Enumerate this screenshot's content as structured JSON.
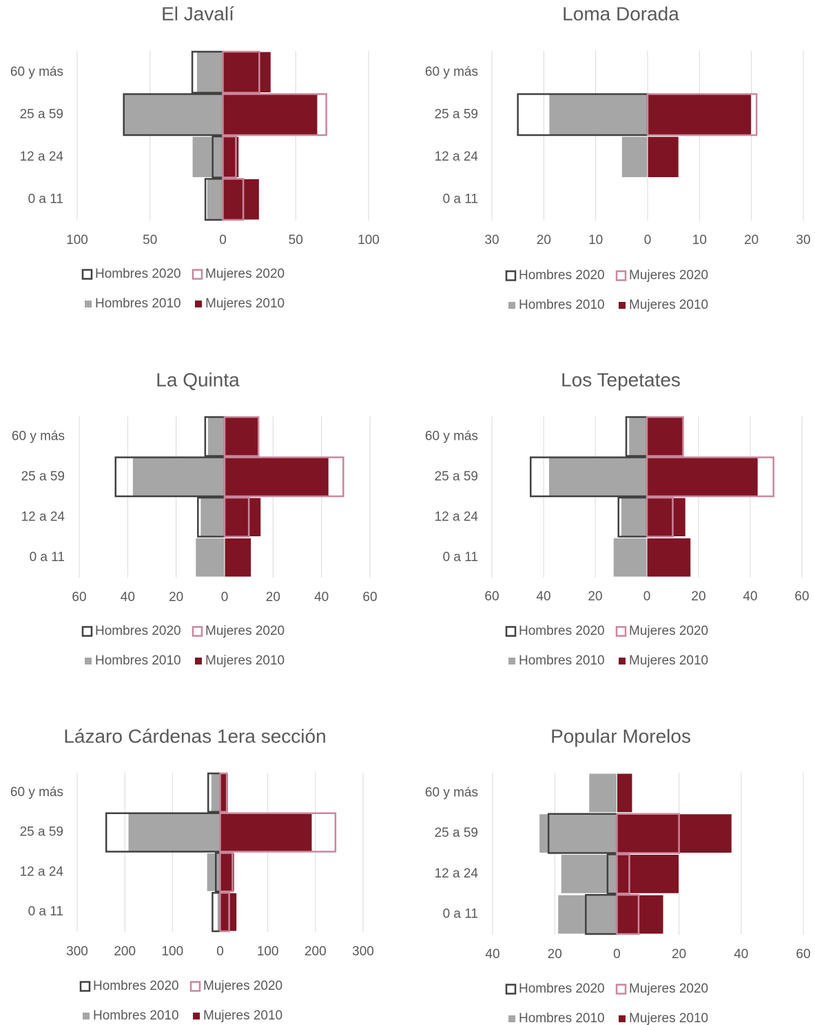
{
  "chart_data": [
    {
      "type": "bar",
      "orientation": "horizontal",
      "title": "El Javalí",
      "categories": [
        "60 y más",
        "25 a 59",
        "12 a 24",
        "0 a 11"
      ],
      "xlim": [
        -100,
        100
      ],
      "xticks": [
        {
          "value": -100,
          "label": "100"
        },
        {
          "value": -50,
          "label": "50"
        },
        0,
        50,
        100
      ],
      "grid": true,
      "series": [
        {
          "name": "Hombres 2020",
          "color": "#404040",
          "style": "outline",
          "values": [
            -21,
            -68,
            -7,
            -12
          ]
        },
        {
          "name": "Mujeres 2020",
          "color": "#c9879b",
          "style": "outline",
          "values": [
            25,
            71,
            9,
            14
          ]
        },
        {
          "name": "Hombres 2010",
          "color": "#a6a6a6",
          "style": "fill",
          "values": [
            -18,
            -68,
            -21,
            -11
          ]
        },
        {
          "name": "Mujeres 2010",
          "color": "#7f1424",
          "style": "fill",
          "values": [
            33,
            65,
            11,
            25
          ]
        }
      ]
    },
    {
      "type": "bar",
      "orientation": "horizontal",
      "title": "Loma Dorada",
      "categories": [
        "60 y más",
        "25 a 59",
        "12 a 24",
        "0 a 11"
      ],
      "xlim": [
        -30,
        30
      ],
      "xticks": [
        {
          "value": -30,
          "label": "30"
        },
        {
          "value": -20,
          "label": "20"
        },
        {
          "value": -10,
          "label": "10"
        },
        0,
        10,
        20,
        30
      ],
      "grid": true,
      "series": [
        {
          "name": "Hombres 2020",
          "color": "#404040",
          "style": "outline",
          "values": [
            0,
            -25,
            0,
            0
          ]
        },
        {
          "name": "Mujeres 2020",
          "color": "#c9879b",
          "style": "outline",
          "values": [
            0,
            21,
            0,
            0
          ]
        },
        {
          "name": "Hombres 2010",
          "color": "#a6a6a6",
          "style": "fill",
          "values": [
            0,
            -19,
            -5,
            0
          ]
        },
        {
          "name": "Mujeres 2010",
          "color": "#7f1424",
          "style": "fill",
          "values": [
            0,
            20,
            6,
            0
          ]
        }
      ]
    },
    {
      "type": "bar",
      "orientation": "horizontal",
      "title": "La Quinta",
      "categories": [
        "60 y más",
        "25 a 59",
        "12 a 24",
        "0 a 11"
      ],
      "xlim": [
        -60,
        60
      ],
      "xticks": [
        {
          "value": -60,
          "label": "60"
        },
        {
          "value": -40,
          "label": "40"
        },
        {
          "value": -20,
          "label": "20"
        },
        0,
        20,
        40,
        60
      ],
      "grid": true,
      "series": [
        {
          "name": "Hombres 2020",
          "color": "#404040",
          "style": "outline",
          "values": [
            -8,
            -45,
            -11,
            0
          ]
        },
        {
          "name": "Mujeres 2020",
          "color": "#c9879b",
          "style": "outline",
          "values": [
            14,
            49,
            10,
            0
          ]
        },
        {
          "name": "Hombres 2010",
          "color": "#a6a6a6",
          "style": "fill",
          "values": [
            -7,
            -38,
            -10,
            -12
          ]
        },
        {
          "name": "Mujeres 2010",
          "color": "#7f1424",
          "style": "fill",
          "values": [
            14,
            43,
            15,
            11
          ]
        }
      ]
    },
    {
      "type": "bar",
      "orientation": "horizontal",
      "title": "Los Tepetates",
      "categories": [
        "60 y más",
        "25 a 59",
        "12 a 24",
        "0 a 11"
      ],
      "xlim": [
        -60,
        60
      ],
      "xticks": [
        {
          "value": -60,
          "label": "60"
        },
        {
          "value": -40,
          "label": "40"
        },
        {
          "value": -20,
          "label": "20"
        },
        0,
        20,
        40,
        60
      ],
      "grid": true,
      "series": [
        {
          "name": "Hombres 2020",
          "color": "#404040",
          "style": "outline",
          "values": [
            -8,
            -45,
            -11,
            0
          ]
        },
        {
          "name": "Mujeres 2020",
          "color": "#c9879b",
          "style": "outline",
          "values": [
            14,
            49,
            10,
            0
          ]
        },
        {
          "name": "Hombres 2010",
          "color": "#a6a6a6",
          "style": "fill",
          "values": [
            -7,
            -38,
            -10,
            -13
          ]
        },
        {
          "name": "Mujeres 2010",
          "color": "#7f1424",
          "style": "fill",
          "values": [
            14,
            43,
            15,
            17
          ]
        }
      ]
    },
    {
      "type": "bar",
      "orientation": "horizontal",
      "title": "Lázaro Cárdenas 1era sección",
      "categories": [
        "60 y más",
        "25 a 59",
        "12 a 24",
        "0 a 11"
      ],
      "xlim": [
        -300,
        300
      ],
      "xticks": [
        {
          "value": -300,
          "label": "300"
        },
        {
          "value": -200,
          "label": "200"
        },
        {
          "value": -100,
          "label": "100"
        },
        0,
        100,
        200,
        300
      ],
      "grid": true,
      "series": [
        {
          "name": "Hombres 2020",
          "color": "#404040",
          "style": "outline",
          "values": [
            -25,
            -239,
            -9,
            -16
          ]
        },
        {
          "name": "Mujeres 2020",
          "color": "#c9879b",
          "style": "outline",
          "values": [
            14,
            242,
            26,
            19
          ]
        },
        {
          "name": "Hombres 2010",
          "color": "#a6a6a6",
          "style": "fill",
          "values": [
            -19,
            -193,
            -28,
            -6
          ]
        },
        {
          "name": "Mujeres 2010",
          "color": "#7f1424",
          "style": "fill",
          "values": [
            17,
            193,
            30,
            35
          ]
        }
      ]
    },
    {
      "type": "bar",
      "orientation": "horizontal",
      "title": "Popular Morelos",
      "categories": [
        "60 y más",
        "25 a 59",
        "12 a 24",
        "0 a 11"
      ],
      "xlim": [
        -40,
        60
      ],
      "xticks": [
        {
          "value": -40,
          "label": "40"
        },
        {
          "value": -20,
          "label": "20"
        },
        0,
        20,
        40,
        60
      ],
      "grid": true,
      "series": [
        {
          "name": "Hombres 2020",
          "color": "#404040",
          "style": "outline",
          "values": [
            0,
            -22,
            -3,
            -10
          ]
        },
        {
          "name": "Mujeres 2020",
          "color": "#c9879b",
          "style": "outline",
          "values": [
            0,
            20,
            4,
            7
          ]
        },
        {
          "name": "Hombres 2010",
          "color": "#a6a6a6",
          "style": "fill",
          "values": [
            -9,
            -25,
            -18,
            -19
          ]
        },
        {
          "name": "Mujeres 2010",
          "color": "#7f1424",
          "style": "fill",
          "values": [
            5,
            37,
            20,
            15
          ]
        }
      ]
    }
  ]
}
